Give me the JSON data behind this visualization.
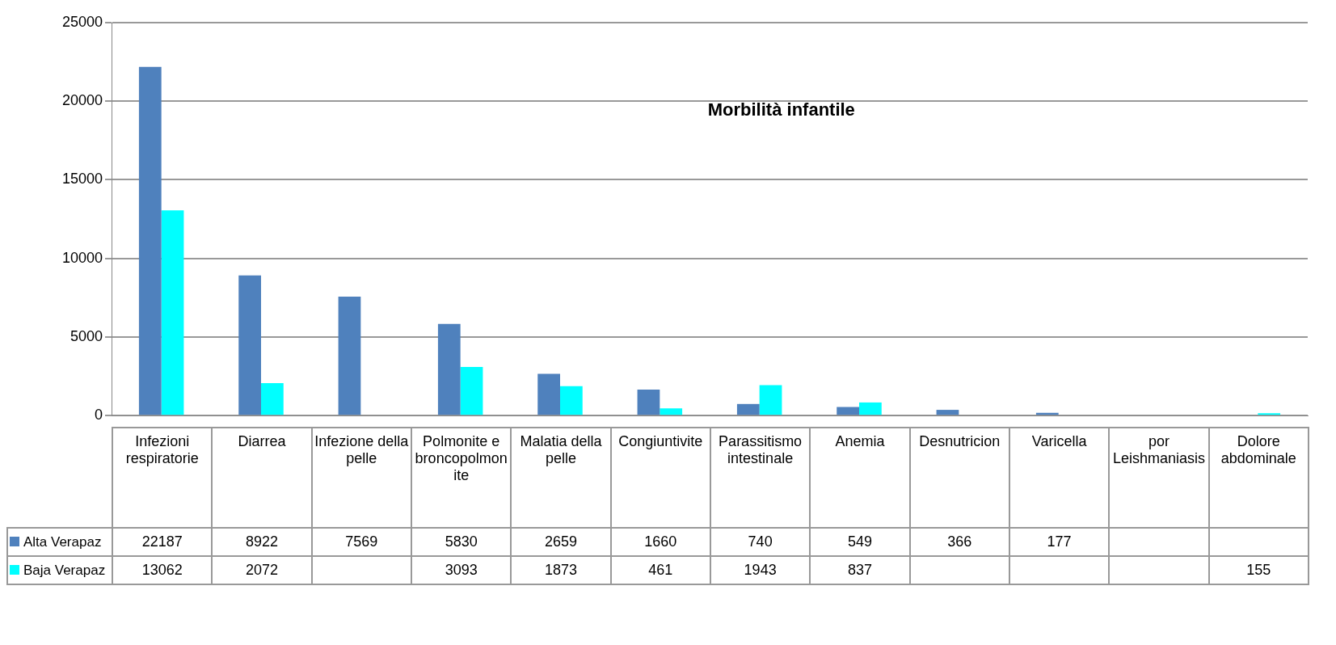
{
  "chart_data": {
    "type": "bar",
    "title": "Morbilità infantile",
    "categories": [
      "Infezioni respiratorie",
      "Diarrea",
      "Infezione della pelle",
      "Polmonite e broncopolmonite",
      "Malatia della pelle",
      "Congiuntivite",
      "Parassitismo intestinale",
      "Anemia",
      "Desnutricion",
      "Varicella",
      "por Leishmaniasis",
      "Dolore abdominale"
    ],
    "series": [
      {
        "name": "Alta Verapaz",
        "color": "#4f81bd",
        "values": [
          22187,
          8922,
          7569,
          5830,
          2659,
          1660,
          740,
          549,
          366,
          177,
          null,
          null
        ]
      },
      {
        "name": "Baja Verapaz",
        "color": "#00ffff",
        "values": [
          13062,
          2072,
          null,
          3093,
          1873,
          461,
          1943,
          837,
          null,
          null,
          null,
          155
        ]
      }
    ],
    "ylim": [
      0,
      25000
    ],
    "yticks": [
      0,
      5000,
      10000,
      15000,
      20000,
      25000
    ],
    "grid": "y",
    "data_labels": true,
    "legend": "bottom left"
  }
}
